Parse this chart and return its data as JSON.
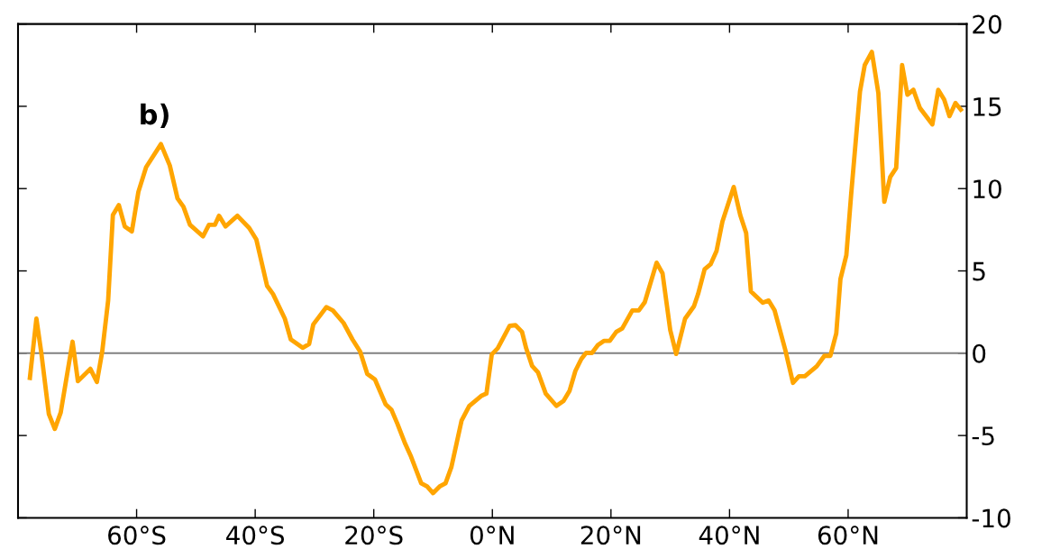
{
  "chart_data": {
    "type": "line",
    "annotations": [
      "b)"
    ],
    "xlim": [
      -80,
      80
    ],
    "xticks": [
      {
        "value": -60,
        "label": "60°S"
      },
      {
        "value": -40,
        "label": "40°S"
      },
      {
        "value": -20,
        "label": "20°S"
      },
      {
        "value": 0,
        "label": "0°N"
      },
      {
        "value": 20,
        "label": "20°N"
      },
      {
        "value": 40,
        "label": "40°N"
      },
      {
        "value": 60,
        "label": "60°N"
      }
    ],
    "ylim": [
      -10,
      20
    ],
    "yticks": [
      -10,
      -5,
      0,
      5,
      10,
      15,
      20
    ],
    "ref_lines": [
      {
        "axis": "y",
        "value": 0,
        "color": "#808080"
      }
    ],
    "marker": "none",
    "line_style": "solid",
    "series": [
      {
        "color": "#ffa500",
        "x": [
          -78,
          -76.9,
          -76.1,
          -74.8,
          -73.8,
          -72.8,
          -70.8,
          -69.9,
          -67.8,
          -66.7,
          -65.8,
          -64.8,
          -64,
          -63,
          -62,
          -60.8,
          -59.7,
          -58.4,
          -55.9,
          -54.4,
          -53.1,
          -52.1,
          -51,
          -48.8,
          -47.8,
          -46.8,
          -46.1,
          -45,
          -43,
          -41,
          -39.8,
          -38,
          -37,
          -35,
          -34,
          -32,
          -30.9,
          -30.2,
          -28,
          -26.9,
          -25.1,
          -23.6,
          -22.3,
          -21.1,
          -19.8,
          -18,
          -17,
          -16,
          -14.7,
          -13.7,
          -12,
          -11,
          -10,
          -8.9,
          -7.9,
          -6.9,
          -5.2,
          -3.9,
          -1.9,
          -1,
          -0.1,
          0.9,
          2.9,
          3.9,
          5,
          5.7,
          6.7,
          7.7,
          9,
          10.8,
          12,
          13,
          14,
          15,
          15.8,
          16.8,
          17.8,
          18.8,
          19.8,
          20.9,
          21.9,
          23.6,
          24.7,
          25.7,
          27.7,
          28.7,
          30,
          31,
          32.5,
          34,
          34.7,
          35.8,
          36.8,
          37.8,
          38.8,
          40.7,
          41.8,
          42.8,
          43.6,
          45.6,
          46.6,
          47.6,
          49.4,
          50.7,
          51.7,
          52.7,
          54.7,
          56,
          57,
          58,
          58.7,
          59.7,
          60.5,
          62,
          62.8,
          64,
          65.1,
          66.1,
          67.1,
          68.1,
          69.1,
          70,
          71,
          72.1,
          74.2,
          75.2,
          76.2,
          77.1,
          78.1,
          79
        ],
        "values": [
          -1.5,
          2.1,
          0.1,
          -3.7,
          -4.6,
          -3.6,
          0.7,
          -1.7,
          -0.95,
          -1.75,
          0.1,
          3.2,
          8.4,
          9,
          7.7,
          7.4,
          9.8,
          11.3,
          12.7,
          11.4,
          9.4,
          8.9,
          7.8,
          7.1,
          7.8,
          7.8,
          8.35,
          7.7,
          8.35,
          7.6,
          6.9,
          4.1,
          3.6,
          2.1,
          0.84,
          0.33,
          0.56,
          1.75,
          2.8,
          2.6,
          1.84,
          0.84,
          0.1,
          -1.26,
          -1.6,
          -3.1,
          -3.45,
          -4.3,
          -5.5,
          -6.3,
          -7.9,
          -8.1,
          -8.5,
          -8.1,
          -7.9,
          -6.9,
          -4.1,
          -3.2,
          -2.6,
          -2.45,
          -0.07,
          0.3,
          1.66,
          1.7,
          1.3,
          0.3,
          -0.77,
          -1.17,
          -2.45,
          -3.2,
          -2.9,
          -2.3,
          -1.08,
          -0.35,
          0.02,
          0.02,
          0.5,
          0.75,
          0.75,
          1.3,
          1.5,
          2.6,
          2.6,
          3.1,
          5.5,
          4.85,
          1.4,
          -0.04,
          2.1,
          2.85,
          3.6,
          5.1,
          5.4,
          6.2,
          8,
          10.1,
          8.4,
          7.3,
          3.75,
          3.07,
          3.2,
          2.6,
          0.2,
          -1.8,
          -1.4,
          -1.4,
          -0.8,
          -0.16,
          -0.16,
          1.2,
          4.5,
          5.95,
          9.6,
          15.9,
          17.5,
          18.3,
          15.8,
          9.2,
          10.7,
          11.25,
          17.5,
          15.7,
          16,
          14.9,
          13.9,
          16,
          15.4,
          14.4,
          15.2,
          14.8
        ]
      }
    ]
  }
}
